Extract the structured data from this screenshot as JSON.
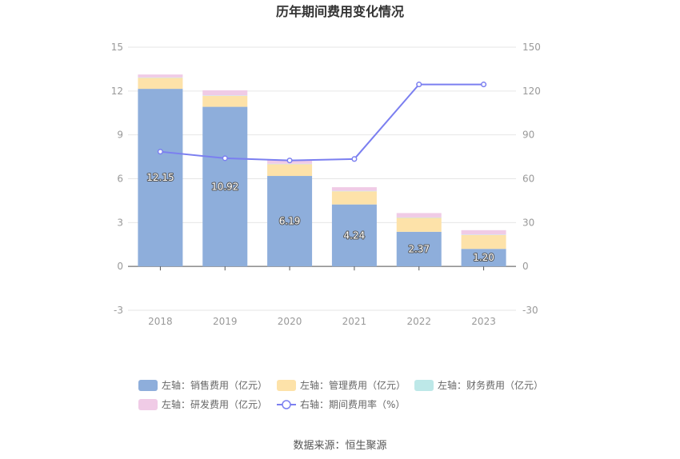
{
  "chart_data": {
    "type": "bar",
    "title": "历年期间费用变化情况",
    "categories": [
      "2018",
      "2019",
      "2020",
      "2021",
      "2022",
      "2023"
    ],
    "left_axis": {
      "min": -3,
      "max": 15,
      "ticks": [
        "-3",
        "0",
        "3",
        "6",
        "9",
        "12",
        "15"
      ]
    },
    "right_axis": {
      "min": -30,
      "max": 150,
      "ticks": [
        "-30",
        "0",
        "30",
        "60",
        "90",
        "120",
        "150"
      ]
    },
    "series": [
      {
        "name": "左轴：销售费用（亿元）",
        "kind": "bar",
        "axis": "left",
        "color": "#8eaedb",
        "values": [
          12.15,
          10.92,
          6.19,
          4.24,
          2.37,
          1.2
        ],
        "labels": [
          "12.15",
          "10.92",
          "6.19",
          "4.24",
          "2.37",
          "1.20"
        ]
      },
      {
        "name": "左轴：管理费用（亿元）",
        "kind": "bar",
        "axis": "left",
        "color": "#fde2a9",
        "values": [
          0.75,
          0.75,
          0.8,
          0.9,
          0.95,
          0.95
        ]
      },
      {
        "name": "左轴：财务费用（亿元）",
        "kind": "bar",
        "axis": "left",
        "color": "#bde8e8",
        "values": [
          0.03,
          0.03,
          0.03,
          0.03,
          0.03,
          0.03
        ]
      },
      {
        "name": "左轴：研发费用（亿元）",
        "kind": "bar",
        "axis": "left",
        "color": "#f0cbe6",
        "values": [
          0.2,
          0.35,
          0.25,
          0.25,
          0.3,
          0.3
        ]
      },
      {
        "name": "右轴：期间费用率（%）",
        "kind": "line",
        "axis": "right",
        "color": "#7b7ff0",
        "values": [
          78.5,
          74.0,
          72.5,
          73.5,
          124.5,
          124.5
        ]
      }
    ],
    "legend_position": "bottom",
    "grid": true
  },
  "source": "数据来源：恒生聚源"
}
